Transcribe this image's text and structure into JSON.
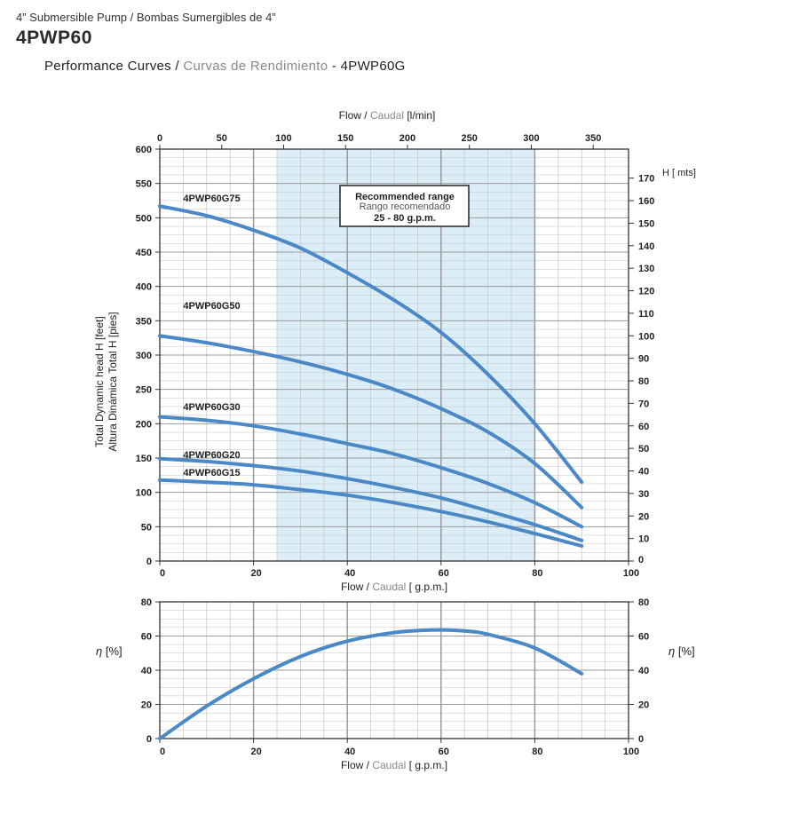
{
  "header": {
    "subtitle": "4” Submersible Pump / Bombas Sumergibles de 4”",
    "model": "4PWP60",
    "curves_en": "Performance Curves / ",
    "curves_es": "Curvas de Rendimiento",
    "curves_model": " - 4PWP60G"
  },
  "colors": {
    "curve": "#4a88c7",
    "range_fill": "#dbeef8",
    "grid": "#c4c4c4",
    "grid_major": "#9a9a9a"
  },
  "chart_data": [
    {
      "type": "line",
      "top_axis": {
        "label_en": "Flow / ",
        "label_es": "Caudal",
        "label_unit": " [l/min]",
        "ticks": [
          "0",
          "50",
          "100",
          "150",
          "200",
          "250",
          "300",
          "350"
        ],
        "values": [
          0,
          50,
          100,
          150,
          200,
          250,
          300,
          350
        ]
      },
      "x": {
        "label_en": "Flow / ",
        "label_es": "Caudal",
        "label_unit": " [ g.p.m.]",
        "range": [
          0,
          100
        ],
        "ticks": [
          "0",
          "20",
          "40",
          "60",
          "80",
          "100"
        ],
        "values": [
          0,
          20,
          40,
          60,
          80,
          100
        ]
      },
      "y_left": {
        "label_en": "Total Dynamic head H [feet]",
        "label_es": "Altura Dinámica Total H [pies]",
        "range": [
          0,
          600
        ],
        "ticks": [
          "0",
          "50",
          "100",
          "150",
          "200",
          "250",
          "300",
          "350",
          "400",
          "450",
          "500",
          "550",
          "600"
        ],
        "values": [
          0,
          50,
          100,
          150,
          200,
          250,
          300,
          350,
          400,
          450,
          500,
          550,
          600
        ]
      },
      "y_right": {
        "label": "H [ mts]",
        "ticks": [
          "0",
          "10",
          "20",
          "30",
          "40",
          "50",
          "60",
          "70",
          "80",
          "90",
          "100",
          "110",
          "120",
          "130",
          "140",
          "150",
          "160",
          "170"
        ],
        "values": [
          0,
          10,
          20,
          30,
          40,
          50,
          60,
          70,
          80,
          90,
          100,
          110,
          120,
          130,
          140,
          150,
          160,
          170
        ]
      },
      "recommended_range": {
        "line1": "Recommended range",
        "line2": "Rango recomendado",
        "line3": "25 - 80 g.p.m.",
        "from": 25,
        "to": 80
      },
      "grid": true,
      "series": [
        {
          "name": "4PWP60G75",
          "x": [
            0,
            10,
            20,
            30,
            40,
            50,
            60,
            70,
            80,
            90
          ],
          "y": [
            517,
            503,
            482,
            456,
            420,
            380,
            333,
            272,
            200,
            115
          ],
          "label_x": 5,
          "label_y": 524
        },
        {
          "name": "4PWP60G50",
          "x": [
            0,
            10,
            20,
            30,
            40,
            50,
            60,
            70,
            80,
            90
          ],
          "y": [
            328,
            318,
            305,
            290,
            272,
            250,
            222,
            188,
            142,
            78
          ],
          "label_x": 5,
          "label_y": 367
        },
        {
          "name": "4PWP60G30",
          "x": [
            0,
            10,
            20,
            30,
            40,
            50,
            60,
            70,
            80,
            90
          ],
          "y": [
            210,
            205,
            197,
            185,
            171,
            156,
            136,
            113,
            85,
            50
          ],
          "label_x": 5,
          "label_y": 220
        },
        {
          "name": "4PWP60G20",
          "x": [
            0,
            10,
            20,
            30,
            40,
            50,
            60,
            70,
            80,
            90
          ],
          "y": [
            149,
            145,
            139,
            131,
            120,
            107,
            92,
            73,
            53,
            30
          ],
          "label_x": 5,
          "label_y": 150
        },
        {
          "name": "4PWP60G15",
          "x": [
            0,
            10,
            20,
            30,
            40,
            50,
            60,
            70,
            80,
            90
          ],
          "y": [
            118,
            115,
            111,
            104,
            96,
            85,
            72,
            57,
            40,
            22
          ],
          "label_x": 5,
          "label_y": 124
        }
      ]
    },
    {
      "type": "line",
      "x": {
        "label_en": "Flow / ",
        "label_es": "Caudal",
        "label_unit": " [ g.p.m.]",
        "range": [
          0,
          100
        ],
        "ticks": [
          "0",
          "20",
          "40",
          "60",
          "80",
          "100"
        ],
        "values": [
          0,
          20,
          40,
          60,
          80,
          100
        ]
      },
      "y": {
        "label_sym": "η",
        "label_unit": " [%]",
        "range": [
          0,
          80
        ],
        "ticks": [
          "0",
          "20",
          "40",
          "60",
          "80"
        ],
        "values": [
          0,
          20,
          40,
          60,
          80
        ]
      },
      "grid": true,
      "series": [
        {
          "x": [
            0,
            10,
            20,
            30,
            40,
            50,
            58,
            65,
            70,
            80,
            90
          ],
          "y": [
            0,
            19,
            35,
            48,
            57,
            62,
            63.5,
            63,
            61,
            53,
            38
          ]
        }
      ]
    }
  ]
}
